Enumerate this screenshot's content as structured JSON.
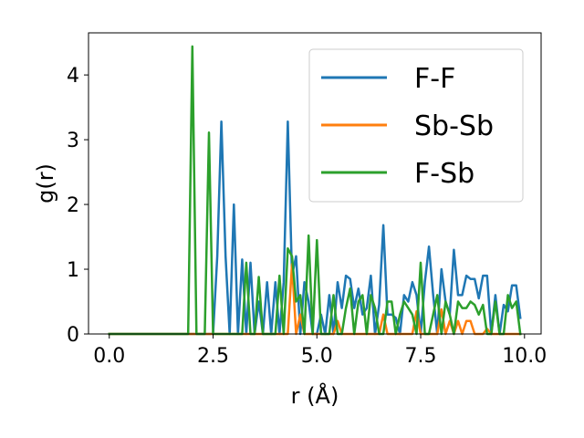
{
  "chart_data": {
    "type": "line",
    "xlabel": "r (Å)",
    "ylabel": "g(r)",
    "xlim": [
      -0.5,
      10.4
    ],
    "ylim": [
      0,
      4.65
    ],
    "xticks": [
      0.0,
      2.5,
      5.0,
      7.5,
      10.0
    ],
    "xtick_labels": [
      "0.0",
      "2.5",
      "5.0",
      "7.5",
      "10.0"
    ],
    "yticks": [
      0,
      1,
      2,
      3,
      4
    ],
    "ytick_labels": [
      "0",
      "1",
      "2",
      "3",
      "4"
    ],
    "grid": false,
    "legend_position": "top-right",
    "series": [
      {
        "name": "F-F",
        "color": "#1f77b4",
        "x": [
          0.0,
          2.5,
          2.6,
          2.7,
          2.8,
          2.9,
          3.0,
          3.1,
          3.2,
          3.3,
          3.4,
          3.5,
          3.6,
          3.7,
          3.8,
          3.9,
          4.0,
          4.1,
          4.2,
          4.3,
          4.4,
          4.5,
          4.6,
          4.7,
          4.8,
          4.9,
          5.0,
          5.1,
          5.2,
          5.3,
          5.4,
          5.5,
          5.6,
          5.7,
          5.8,
          5.9,
          6.0,
          6.1,
          6.2,
          6.3,
          6.4,
          6.5,
          6.6,
          6.7,
          6.8,
          6.9,
          7.0,
          7.1,
          7.2,
          7.3,
          7.4,
          7.5,
          7.6,
          7.7,
          7.8,
          7.9,
          8.0,
          8.1,
          8.2,
          8.3,
          8.4,
          8.5,
          8.6,
          8.7,
          8.8,
          8.9,
          9.0,
          9.1,
          9.2,
          9.3,
          9.4,
          9.5,
          9.6,
          9.7,
          9.8,
          9.9
        ],
        "y": [
          0.0,
          0.0,
          1.2,
          3.28,
          1.2,
          0.0,
          2.0,
          0.0,
          1.15,
          0.0,
          1.1,
          0.0,
          0.5,
          0.0,
          0.8,
          0.0,
          0.8,
          0.0,
          0.8,
          3.28,
          0.9,
          1.2,
          0.0,
          0.8,
          0.5,
          0.0,
          0.0,
          0.3,
          0.0,
          0.6,
          0.0,
          0.8,
          0.4,
          0.9,
          0.85,
          0.4,
          0.7,
          0.3,
          0.4,
          0.9,
          0.0,
          0.45,
          1.68,
          0.3,
          0.3,
          0.25,
          0.0,
          0.6,
          0.5,
          0.8,
          0.6,
          0.0,
          0.8,
          1.35,
          0.6,
          0.0,
          1.0,
          0.5,
          0.3,
          1.3,
          0.6,
          0.6,
          0.9,
          0.85,
          0.85,
          0.55,
          0.9,
          0.9,
          0.0,
          0.6,
          0.0,
          0.45,
          0.35,
          0.75,
          0.75,
          0.25
        ]
      },
      {
        "name": "Sb-Sb",
        "color": "#ff7f0e",
        "x": [
          0.0,
          4.3,
          4.4,
          4.5,
          4.6,
          4.7,
          4.8,
          5.4,
          5.5,
          5.6,
          6.5,
          6.6,
          6.7,
          7.3,
          7.4,
          7.5,
          7.9,
          8.0,
          8.1,
          8.2,
          8.3,
          8.4,
          8.5,
          8.6,
          8.7,
          8.8,
          9.0,
          9.1,
          9.2,
          9.9
        ],
        "y": [
          0.0,
          0.0,
          1.08,
          0.0,
          0.3,
          0.0,
          0.0,
          0.0,
          0.2,
          0.0,
          0.0,
          0.3,
          0.0,
          0.0,
          0.35,
          0.0,
          0.0,
          0.38,
          0.0,
          0.2,
          0.0,
          0.2,
          0.0,
          0.2,
          0.2,
          0.0,
          0.0,
          0.08,
          0.0,
          0.0
        ]
      },
      {
        "name": "F-Sb",
        "color": "#2ca02c",
        "x": [
          0.0,
          1.9,
          2.0,
          2.1,
          2.3,
          2.4,
          2.5,
          3.2,
          3.3,
          3.4,
          3.5,
          3.6,
          3.7,
          3.8,
          4.0,
          4.1,
          4.2,
          4.3,
          4.4,
          4.5,
          4.6,
          4.7,
          4.8,
          4.9,
          5.0,
          5.1,
          5.2,
          5.3,
          5.4,
          5.5,
          5.6,
          5.7,
          5.8,
          5.9,
          6.0,
          6.1,
          6.2,
          6.3,
          6.4,
          6.5,
          6.6,
          6.7,
          6.8,
          6.9,
          7.0,
          7.1,
          7.2,
          7.3,
          7.4,
          7.5,
          7.6,
          7.7,
          7.8,
          7.9,
          8.0,
          8.1,
          8.2,
          8.3,
          8.4,
          8.5,
          8.6,
          8.7,
          8.8,
          8.9,
          9.0,
          9.1,
          9.2,
          9.3,
          9.4,
          9.5,
          9.6,
          9.7,
          9.8,
          9.9
        ],
        "y": [
          0.0,
          0.0,
          4.44,
          0.0,
          0.0,
          3.11,
          0.0,
          0.0,
          1.1,
          0.0,
          0.0,
          0.88,
          0.0,
          0.0,
          0.0,
          0.9,
          0.0,
          1.32,
          1.2,
          0.5,
          0.6,
          0.0,
          1.52,
          0.0,
          1.45,
          0.0,
          0.0,
          0.0,
          0.6,
          0.0,
          0.0,
          0.4,
          0.7,
          0.0,
          0.5,
          0.6,
          0.0,
          0.6,
          0.4,
          0.0,
          0.0,
          0.5,
          0.5,
          0.0,
          0.3,
          0.5,
          0.4,
          0.3,
          0.0,
          1.1,
          0.0,
          0.0,
          0.3,
          0.6,
          0.0,
          0.5,
          0.3,
          0.0,
          0.5,
          0.4,
          0.4,
          0.5,
          0.45,
          0.3,
          0.45,
          0.0,
          0.0,
          0.5,
          0.0,
          0.0,
          0.6,
          0.4,
          0.5,
          0.0
        ]
      }
    ]
  }
}
